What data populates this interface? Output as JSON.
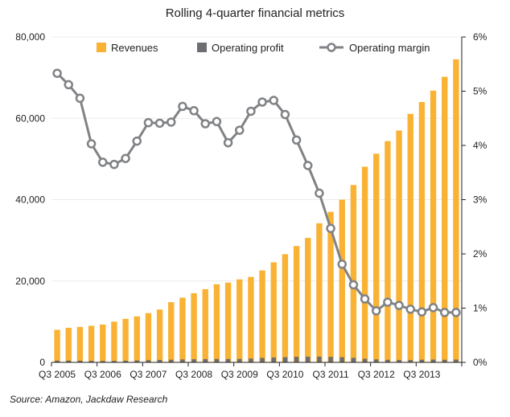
{
  "chart_data": {
    "type": "bar",
    "title": "Rolling 4-quarter financial metrics",
    "source": "Source: Amazon, Jackdaw Research",
    "xlabel": "",
    "ylabel": "",
    "y2label": "",
    "x": [
      "Q3 2005",
      "Q4 2005",
      "Q1 2006",
      "Q2 2006",
      "Q3 2006",
      "Q4 2006",
      "Q1 2007",
      "Q2 2007",
      "Q3 2007",
      "Q4 2007",
      "Q1 2008",
      "Q2 2008",
      "Q3 2008",
      "Q4 2008",
      "Q1 2009",
      "Q2 2009",
      "Q3 2009",
      "Q4 2009",
      "Q1 2010",
      "Q2 2010",
      "Q3 2010",
      "Q4 2010",
      "Q1 2011",
      "Q2 2011",
      "Q3 2011",
      "Q4 2011",
      "Q1 2012",
      "Q2 2012",
      "Q3 2012",
      "Q4 2012",
      "Q1 2013",
      "Q2 2013",
      "Q3 2013",
      "Q4 2013",
      "Q1 2014",
      "Q2 2014"
    ],
    "x_tick_labels": [
      "Q3 2005",
      "Q3 2006",
      "Q3 2007",
      "Q3 2008",
      "Q3 2009",
      "Q3 2010",
      "Q3 2011",
      "Q3 2012",
      "Q3 2013"
    ],
    "ylim": [
      0,
      80000
    ],
    "y_ticks": [
      0,
      20000,
      40000,
      60000,
      80000
    ],
    "y_tick_labels": [
      "0",
      "20,000",
      "40,000",
      "60,000",
      "80,000"
    ],
    "y2lim": [
      0,
      6
    ],
    "y2_ticks": [
      0,
      1,
      2,
      3,
      4,
      5,
      6
    ],
    "y2_tick_labels": [
      "0%",
      "1%",
      "2%",
      "3%",
      "4%",
      "5%",
      "6%"
    ],
    "legend_position": "top",
    "grid": true,
    "series": [
      {
        "name": "Revenues",
        "kind": "bar",
        "axis": "left",
        "color": "#F9B233",
        "values": [
          8000,
          8500,
          8700,
          9000,
          9300,
          10000,
          10700,
          11300,
          12100,
          13000,
          14800,
          15900,
          17000,
          18000,
          19200,
          19600,
          20400,
          21000,
          22600,
          24600,
          26600,
          28600,
          30600,
          34200,
          37000,
          40000,
          43600,
          48100,
          51300,
          54400,
          57000,
          61100,
          64000,
          66800,
          70200,
          74500
        ]
      },
      {
        "name": "Operating profit",
        "kind": "bar",
        "axis": "left",
        "color": "#6D6E71",
        "values": [
          420,
          440,
          410,
          360,
          340,
          350,
          400,
          470,
          540,
          590,
          650,
          730,
          780,
          800,
          840,
          830,
          840,
          950,
          1100,
          1190,
          1270,
          1370,
          1400,
          1410,
          1350,
          1260,
          1110,
          880,
          740,
          640,
          580,
          570,
          650,
          690,
          640,
          690
        ]
      },
      {
        "name": "Operating margin",
        "kind": "line",
        "axis": "right",
        "color": "#808285",
        "values": [
          5.33,
          5.12,
          4.87,
          4.03,
          3.69,
          3.65,
          3.76,
          4.08,
          4.42,
          4.41,
          4.43,
          4.72,
          4.64,
          4.4,
          4.44,
          4.05,
          4.28,
          4.63,
          4.8,
          4.83,
          4.57,
          4.1,
          3.63,
          3.12,
          2.47,
          1.81,
          1.43,
          1.17,
          0.95,
          1.11,
          1.05,
          0.98,
          0.93,
          1.01,
          0.92,
          0.92
        ]
      }
    ]
  }
}
